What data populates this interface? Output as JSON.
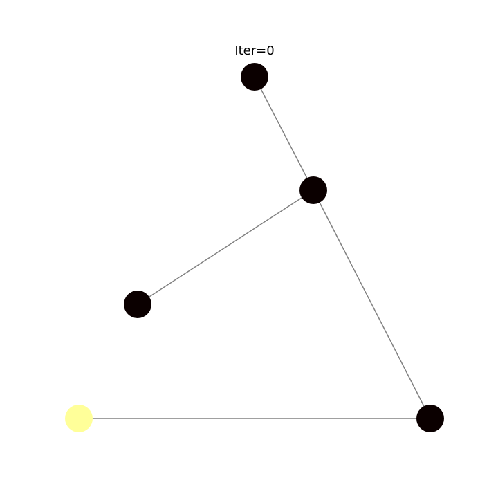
{
  "title": "Iter=0",
  "graph": {
    "edge_color": "#808080",
    "nodes": [
      {
        "id": "n1",
        "color": "#0b0000"
      },
      {
        "id": "n2",
        "color": "#0b0000"
      },
      {
        "id": "n3",
        "color": "#0b0000"
      },
      {
        "id": "n4",
        "color": "#0b0000"
      },
      {
        "id": "n5",
        "color": "#ffff99"
      }
    ],
    "edges": [
      {
        "source": "n1",
        "target": "n2"
      },
      {
        "source": "n2",
        "target": "n3"
      },
      {
        "source": "n2",
        "target": "n4"
      },
      {
        "source": "n4",
        "target": "n5"
      }
    ]
  }
}
